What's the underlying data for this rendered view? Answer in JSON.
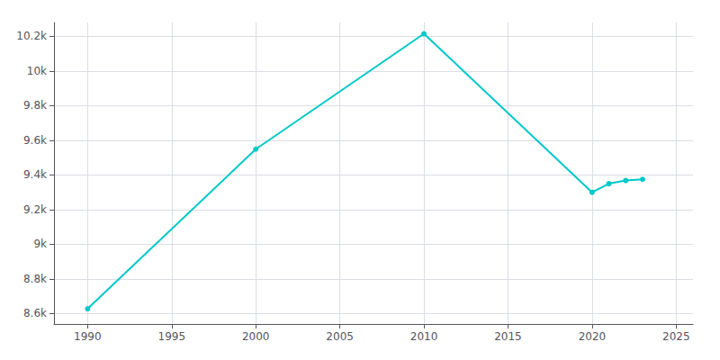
{
  "chart_data": {
    "type": "line",
    "x": [
      1990,
      2000,
      2010,
      2020,
      2021,
      2022,
      2023
    ],
    "values": [
      8628,
      9549,
      10215,
      9300,
      9350,
      9368,
      9375
    ],
    "color": "#00C8C8",
    "marker": "circle",
    "xlim": [
      1988,
      2026
    ],
    "ylim": [
      8540,
      10280
    ],
    "xticks": [
      1990,
      1995,
      2000,
      2005,
      2010,
      2015,
      2020,
      2025
    ],
    "yticks": [
      {
        "value": 8600,
        "label": "8.6k"
      },
      {
        "value": 8800,
        "label": "8.8k"
      },
      {
        "value": 9000,
        "label": "9k"
      },
      {
        "value": 9200,
        "label": "9.2k"
      },
      {
        "value": 9400,
        "label": "9.4k"
      },
      {
        "value": 9600,
        "label": "9.6k"
      },
      {
        "value": 9800,
        "label": "9.8k"
      },
      {
        "value": 10000,
        "label": "10k"
      },
      {
        "value": 10200,
        "label": "10.2k"
      }
    ],
    "grid": true
  }
}
